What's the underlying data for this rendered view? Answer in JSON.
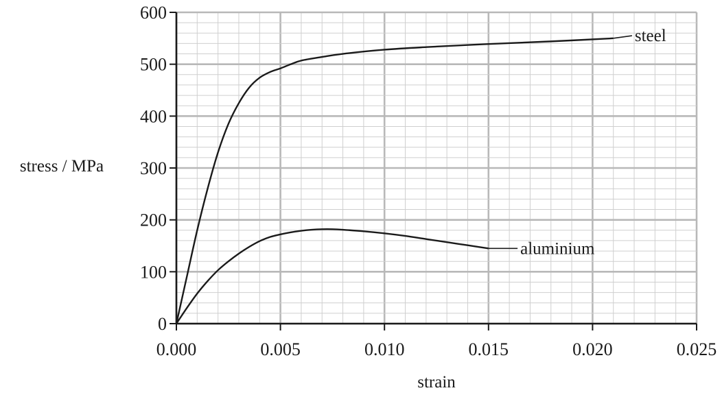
{
  "chart_data": {
    "type": "line",
    "xlabel": "strain",
    "ylabel": "stress / MPa",
    "xlim": [
      0,
      0.025
    ],
    "ylim": [
      0,
      600
    ],
    "x_ticks": [
      0.0,
      0.005,
      0.01,
      0.015,
      0.02,
      0.025
    ],
    "x_tick_labels": [
      "0.000",
      "0.005",
      "0.010",
      "0.015",
      "0.020",
      "0.025"
    ],
    "y_ticks": [
      0,
      100,
      200,
      300,
      400,
      500,
      600
    ],
    "y_tick_labels": [
      "0",
      "100",
      "200",
      "300",
      "400",
      "500",
      "600"
    ],
    "grid": true,
    "minor_grid_per_major": 5,
    "series": [
      {
        "name": "steel",
        "label_at": [
          0.0215,
          555
        ],
        "points": [
          [
            0.0,
            0
          ],
          [
            0.0005,
            90
          ],
          [
            0.001,
            180
          ],
          [
            0.0015,
            260
          ],
          [
            0.002,
            330
          ],
          [
            0.0025,
            385
          ],
          [
            0.003,
            425
          ],
          [
            0.0035,
            455
          ],
          [
            0.004,
            474
          ],
          [
            0.0045,
            485
          ],
          [
            0.005,
            492
          ],
          [
            0.0055,
            500
          ],
          [
            0.006,
            507
          ],
          [
            0.007,
            514
          ],
          [
            0.008,
            520
          ],
          [
            0.01,
            528
          ],
          [
            0.012,
            533
          ],
          [
            0.015,
            539
          ],
          [
            0.018,
            544
          ],
          [
            0.021,
            550
          ]
        ]
      },
      {
        "name": "aluminium",
        "label_at": [
          0.016,
          145
        ],
        "points": [
          [
            0.0,
            0
          ],
          [
            0.0005,
            30
          ],
          [
            0.001,
            58
          ],
          [
            0.0015,
            82
          ],
          [
            0.002,
            103
          ],
          [
            0.0025,
            120
          ],
          [
            0.003,
            135
          ],
          [
            0.0035,
            148
          ],
          [
            0.004,
            159
          ],
          [
            0.0045,
            167
          ],
          [
            0.005,
            172
          ],
          [
            0.0055,
            176
          ],
          [
            0.006,
            179
          ],
          [
            0.0065,
            181
          ],
          [
            0.007,
            182
          ],
          [
            0.0075,
            182
          ],
          [
            0.008,
            181
          ],
          [
            0.009,
            178
          ],
          [
            0.01,
            174
          ],
          [
            0.011,
            169
          ],
          [
            0.012,
            163
          ],
          [
            0.013,
            157
          ],
          [
            0.014,
            151
          ],
          [
            0.015,
            145
          ]
        ]
      }
    ]
  }
}
